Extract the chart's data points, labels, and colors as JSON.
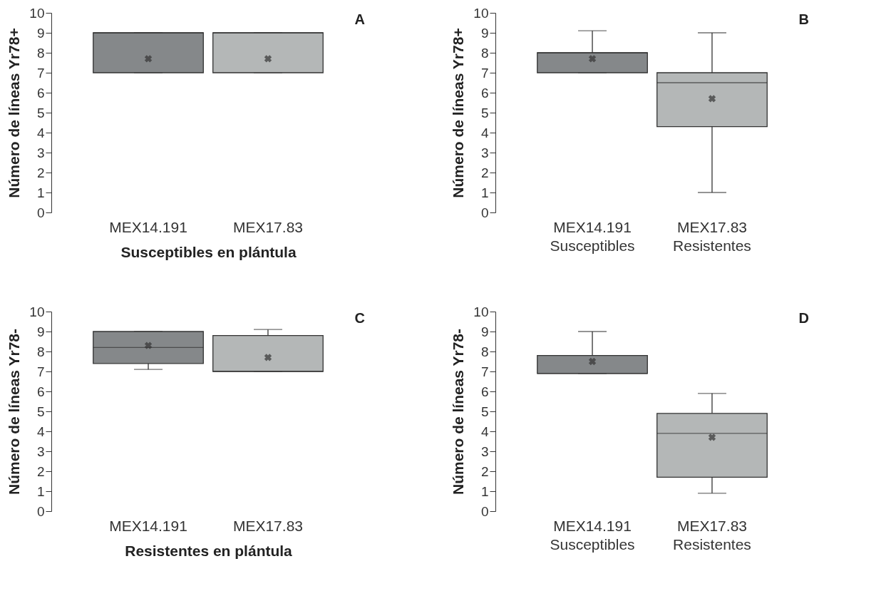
{
  "chart_data": [
    {
      "type": "box",
      "annotations": [
        "A"
      ],
      "ylabel": "Número de líneas Yr78+",
      "xlabel": "Susceptibles en plántula",
      "categories": [
        "MEX14.191",
        "MEX17.83"
      ],
      "colors": [
        "#85888a",
        "#b4b7b7"
      ],
      "boxes": [
        {
          "low": 7,
          "q1": 7,
          "median": 9,
          "q3": 9,
          "high": 9,
          "mean": 7.7
        },
        {
          "low": 7,
          "q1": 7,
          "median": 9,
          "q3": 9,
          "high": 9,
          "mean": 7.7
        }
      ],
      "ylim": [
        0,
        10
      ],
      "yticks": [
        0,
        1,
        2,
        3,
        4,
        5,
        6,
        7,
        8,
        9,
        10
      ]
    },
    {
      "type": "box",
      "annotations": [
        "B"
      ],
      "ylabel": "Número de líneas Yr78+",
      "categories": [
        "MEX14.191 Susceptibles",
        "MEX17.83 Resistentes"
      ],
      "colors": [
        "#85888a",
        "#b4b7b7"
      ],
      "boxes": [
        {
          "low": 7,
          "q1": 7,
          "median": 8,
          "q3": 8,
          "high": 9.1,
          "mean": 7.7
        },
        {
          "low": 1,
          "q1": 4.3,
          "median": 6.5,
          "q3": 7,
          "high": 9,
          "mean": 5.7
        }
      ],
      "ylim": [
        0,
        10
      ],
      "yticks": [
        0,
        1,
        2,
        3,
        4,
        5,
        6,
        7,
        8,
        9,
        10
      ]
    },
    {
      "type": "box",
      "annotations": [
        "C"
      ],
      "ylabel": "Número de líneas Yr78-",
      "xlabel": "Resistentes en plántula",
      "categories": [
        "MEX14.191",
        "MEX17.83"
      ],
      "colors": [
        "#85888a",
        "#b4b7b7"
      ],
      "boxes": [
        {
          "low": 7.1,
          "q1": 7.4,
          "median": 8.2,
          "q3": 9,
          "high": 9,
          "mean": 8.3
        },
        {
          "low": 7,
          "q1": 7,
          "median": 7,
          "q3": 8.8,
          "high": 9.1,
          "mean": 7.7
        }
      ],
      "ylim": [
        0,
        10
      ],
      "yticks": [
        0,
        1,
        2,
        3,
        4,
        5,
        6,
        7,
        8,
        9,
        10
      ]
    },
    {
      "type": "box",
      "annotations": [
        "D"
      ],
      "ylabel": "Número de líneas Yr78-",
      "categories": [
        "MEX14.191 Susceptibles",
        "MEX17.83 Resistentes"
      ],
      "colors": [
        "#85888a",
        "#b4b7b7"
      ],
      "boxes": [
        {
          "low": 6.9,
          "q1": 6.9,
          "median": 6.9,
          "q3": 7.8,
          "high": 9,
          "mean": 7.5
        },
        {
          "low": 0.9,
          "q1": 1.7,
          "median": 3.9,
          "q3": 4.9,
          "high": 5.9,
          "mean": 3.7
        }
      ],
      "ylim": [
        0,
        10
      ],
      "yticks": [
        0,
        1,
        2,
        3,
        4,
        5,
        6,
        7,
        8,
        9,
        10
      ]
    }
  ]
}
